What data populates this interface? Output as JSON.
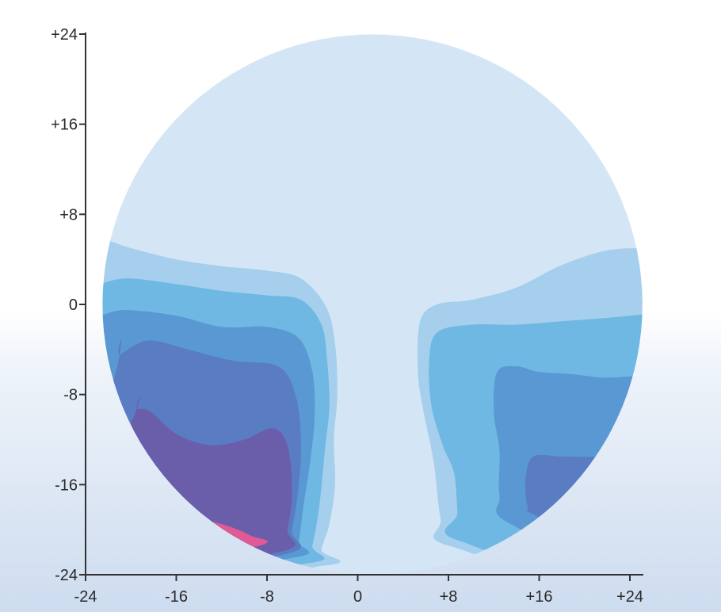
{
  "chart_data": {
    "type": "heatmap",
    "title": "",
    "xlabel": "",
    "ylabel": "",
    "xlim": [
      -24,
      24
    ],
    "ylim": [
      -24,
      24
    ],
    "x_ticks": [
      "-24",
      "-16",
      "-8",
      "0",
      "+8",
      "+16",
      "+24"
    ],
    "y_ticks": [
      "+24",
      "+16",
      "+8",
      "0",
      "-8",
      "-16",
      "-24"
    ],
    "x_tick_values": [
      -24,
      -16,
      -8,
      0,
      8,
      16,
      24
    ],
    "y_tick_values": [
      24,
      16,
      8,
      0,
      -8,
      -16,
      -24
    ],
    "circle": {
      "center": [
        1.3,
        0
      ],
      "radius": 23.8
    },
    "contour_levels": [
      {
        "level": 1,
        "color": "#d4e6f5"
      },
      {
        "level": 2,
        "color": "#a5cfec"
      },
      {
        "level": 3,
        "color": "#6eb8e3"
      },
      {
        "level": 4,
        "color": "#5a98d3"
      },
      {
        "level": 5,
        "color": "#5a7cc2"
      },
      {
        "level": 6,
        "color": "#6a5eab"
      },
      {
        "level": 7,
        "color": "#e05a95"
      }
    ],
    "regions": [
      {
        "level": 2,
        "side": "left",
        "points": [
          [
            -22.9,
            6.0
          ],
          [
            -20,
            5.0
          ],
          [
            -16,
            4.0
          ],
          [
            -12,
            3.4
          ],
          [
            -8,
            3.0
          ],
          [
            -5,
            2.3
          ],
          [
            -2.8,
            -0.2
          ],
          [
            -2.0,
            -3.5
          ],
          [
            -1.8,
            -8.0
          ],
          [
            -2.1,
            -12.0
          ],
          [
            -2.0,
            -16.0
          ],
          [
            -2.5,
            -19.5
          ],
          [
            -3.2,
            -21.8
          ],
          [
            -3.0,
            -23.2
          ],
          [
            -24,
            -24
          ],
          [
            -24,
            6
          ]
        ]
      },
      {
        "level": 3,
        "side": "left",
        "points": [
          [
            -23.3,
            1.6
          ],
          [
            -20.5,
            2.3
          ],
          [
            -16,
            1.8
          ],
          [
            -12,
            1.2
          ],
          [
            -8,
            0.8
          ],
          [
            -5,
            0.4
          ],
          [
            -3.2,
            -1.8
          ],
          [
            -2.7,
            -5.0
          ],
          [
            -2.5,
            -9.0
          ],
          [
            -2.9,
            -13.0
          ],
          [
            -3.4,
            -18.0
          ],
          [
            -4.0,
            -21.4
          ],
          [
            -4.5,
            -23.0
          ],
          [
            -24,
            -24
          ],
          [
            -24,
            1.6
          ]
        ]
      },
      {
        "level": 4,
        "side": "left",
        "points": [
          [
            -22.8,
            -1.0
          ],
          [
            -20.5,
            -0.5
          ],
          [
            -16,
            -1.0
          ],
          [
            -12,
            -2.0
          ],
          [
            -8,
            -2.0
          ],
          [
            -5.2,
            -3.0
          ],
          [
            -4.0,
            -6.0
          ],
          [
            -3.8,
            -10.0
          ],
          [
            -4.2,
            -14.0
          ],
          [
            -4.8,
            -18.0
          ],
          [
            -5.2,
            -21.0
          ],
          [
            -5.8,
            -22.5
          ],
          [
            -24,
            -24
          ],
          [
            -24,
            -1
          ]
        ]
      },
      {
        "level": 5,
        "side": "left",
        "points": [
          [
            -21.0,
            -4.5
          ],
          [
            -18.5,
            -3.2
          ],
          [
            -15,
            -4.0
          ],
          [
            -11,
            -5.0
          ],
          [
            -7,
            -5.5
          ],
          [
            -5.5,
            -8.0
          ],
          [
            -5.0,
            -12.0
          ],
          [
            -5.2,
            -16.0
          ],
          [
            -5.8,
            -20.0
          ],
          [
            -6.5,
            -22.2
          ],
          [
            -24,
            -24
          ],
          [
            -21,
            -4.5
          ]
        ]
      },
      {
        "level": 6,
        "side": "left",
        "points": [
          [
            -19.5,
            -9.3
          ],
          [
            -18.3,
            -9.5
          ],
          [
            -16,
            -11.5
          ],
          [
            -13,
            -12.5
          ],
          [
            -10,
            -12.0
          ],
          [
            -7.5,
            -11.0
          ],
          [
            -6.2,
            -12.5
          ],
          [
            -5.8,
            -16.5
          ],
          [
            -6.2,
            -20.0
          ],
          [
            -7.0,
            -22.0
          ],
          [
            -24,
            -24
          ],
          [
            -19.5,
            -9.3
          ]
        ]
      },
      {
        "level": 7,
        "side": "left",
        "points": [
          [
            -14.5,
            -19.0
          ],
          [
            -12,
            -19.5
          ],
          [
            -9.5,
            -20.5
          ],
          [
            -9.0,
            -21.5
          ],
          [
            -24,
            -24
          ],
          [
            -14.5,
            -19.0
          ]
        ]
      },
      {
        "level": 2,
        "side": "right",
        "points": [
          [
            25.5,
            5.0
          ],
          [
            22,
            4.8
          ],
          [
            18,
            3.5
          ],
          [
            14,
            1.5
          ],
          [
            10,
            0.4
          ],
          [
            7.0,
            0.0
          ],
          [
            5.5,
            -1.5
          ],
          [
            5.3,
            -6.0
          ],
          [
            5.8,
            -9.5
          ],
          [
            6.7,
            -14.0
          ],
          [
            7.3,
            -19.0
          ],
          [
            8.3,
            -21.5
          ],
          [
            26,
            -24
          ],
          [
            26,
            5
          ]
        ]
      },
      {
        "level": 3,
        "side": "right",
        "points": [
          [
            26,
            -0.8
          ],
          [
            22,
            -1.2
          ],
          [
            18,
            -1.5
          ],
          [
            14,
            -1.8
          ],
          [
            10,
            -1.8
          ],
          [
            7.0,
            -2.5
          ],
          [
            6.3,
            -5.0
          ],
          [
            6.5,
            -9.0
          ],
          [
            7.5,
            -12.5
          ],
          [
            8.5,
            -15.0
          ],
          [
            8.8,
            -18.5
          ],
          [
            9.0,
            -21.0
          ],
          [
            26,
            -24
          ],
          [
            26,
            -0.8
          ]
        ]
      },
      {
        "level": 4,
        "side": "right",
        "points": [
          [
            26,
            -6.2
          ],
          [
            22,
            -6.5
          ],
          [
            19,
            -6.2
          ],
          [
            16,
            -6.0
          ],
          [
            14,
            -5.5
          ],
          [
            12.3,
            -6.0
          ],
          [
            12.0,
            -9.5
          ],
          [
            12.5,
            -13.0
          ],
          [
            12.5,
            -17.0
          ],
          [
            13.5,
            -19.5
          ],
          [
            26,
            -24
          ],
          [
            26,
            -6.2
          ]
        ]
      },
      {
        "level": 5,
        "side": "right",
        "points": [
          [
            26,
            -13.0
          ],
          [
            22,
            -13.5
          ],
          [
            18,
            -13.5
          ],
          [
            15.5,
            -13.5
          ],
          [
            14.8,
            -15.5
          ],
          [
            15.0,
            -18.0
          ],
          [
            15.8,
            -18.8
          ],
          [
            26,
            -24
          ],
          [
            26,
            -13
          ]
        ]
      }
    ]
  }
}
